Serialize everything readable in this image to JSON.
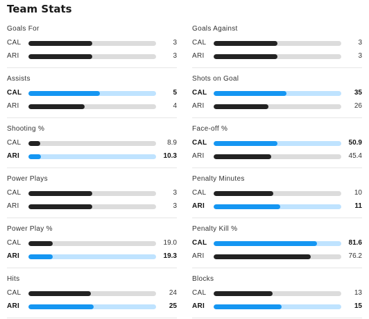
{
  "title": "Team Stats",
  "colors": {
    "leader_fill": "#1596f2",
    "leader_track": "#bfe3ff",
    "default_fill": "#222222",
    "default_track": "#dcdcdc"
  },
  "left_column": [
    {
      "label": "Goals For",
      "rows": [
        {
          "team": "CAL",
          "value": "3",
          "fill": 0.5,
          "lead": false
        },
        {
          "team": "ARI",
          "value": "3",
          "fill": 0.5,
          "lead": false
        }
      ]
    },
    {
      "label": "Assists",
      "rows": [
        {
          "team": "CAL",
          "value": "5",
          "fill": 0.56,
          "lead": true
        },
        {
          "team": "ARI",
          "value": "4",
          "fill": 0.44,
          "lead": false
        }
      ]
    },
    {
      "label": "Shooting %",
      "rows": [
        {
          "team": "CAL",
          "value": "8.9",
          "fill": 0.09,
          "lead": false
        },
        {
          "team": "ARI",
          "value": "10.3",
          "fill": 0.1,
          "lead": true
        }
      ]
    },
    {
      "label": "Power Plays",
      "rows": [
        {
          "team": "CAL",
          "value": "3",
          "fill": 0.5,
          "lead": false
        },
        {
          "team": "ARI",
          "value": "3",
          "fill": 0.5,
          "lead": false
        }
      ]
    },
    {
      "label": "Power Play %",
      "rows": [
        {
          "team": "CAL",
          "value": "19.0",
          "fill": 0.19,
          "lead": false
        },
        {
          "team": "ARI",
          "value": "19.3",
          "fill": 0.19,
          "lead": true
        }
      ]
    },
    {
      "label": "Hits",
      "rows": [
        {
          "team": "CAL",
          "value": "24",
          "fill": 0.49,
          "lead": false
        },
        {
          "team": "ARI",
          "value": "25",
          "fill": 0.51,
          "lead": true
        }
      ]
    }
  ],
  "right_column": [
    {
      "label": "Goals Against",
      "rows": [
        {
          "team": "CAL",
          "value": "3",
          "fill": 0.5,
          "lead": false
        },
        {
          "team": "ARI",
          "value": "3",
          "fill": 0.5,
          "lead": false
        }
      ]
    },
    {
      "label": "Shots on Goal",
      "rows": [
        {
          "team": "CAL",
          "value": "35",
          "fill": 0.57,
          "lead": true
        },
        {
          "team": "ARI",
          "value": "26",
          "fill": 0.43,
          "lead": false
        }
      ]
    },
    {
      "label": "Face-off %",
      "rows": [
        {
          "team": "CAL",
          "value": "50.9",
          "fill": 0.5,
          "lead": true
        },
        {
          "team": "ARI",
          "value": "45.4",
          "fill": 0.45,
          "lead": false
        }
      ]
    },
    {
      "label": "Penalty Minutes",
      "rows": [
        {
          "team": "CAL",
          "value": "10",
          "fill": 0.47,
          "lead": false
        },
        {
          "team": "ARI",
          "value": "11",
          "fill": 0.52,
          "lead": true
        }
      ]
    },
    {
      "label": "Penalty Kill %",
      "rows": [
        {
          "team": "CAL",
          "value": "81.6",
          "fill": 0.81,
          "lead": true
        },
        {
          "team": "ARI",
          "value": "76.2",
          "fill": 0.76,
          "lead": false
        }
      ]
    },
    {
      "label": "Blocks",
      "rows": [
        {
          "team": "CAL",
          "value": "13",
          "fill": 0.46,
          "lead": false
        },
        {
          "team": "ARI",
          "value": "15",
          "fill": 0.53,
          "lead": true
        }
      ]
    }
  ]
}
